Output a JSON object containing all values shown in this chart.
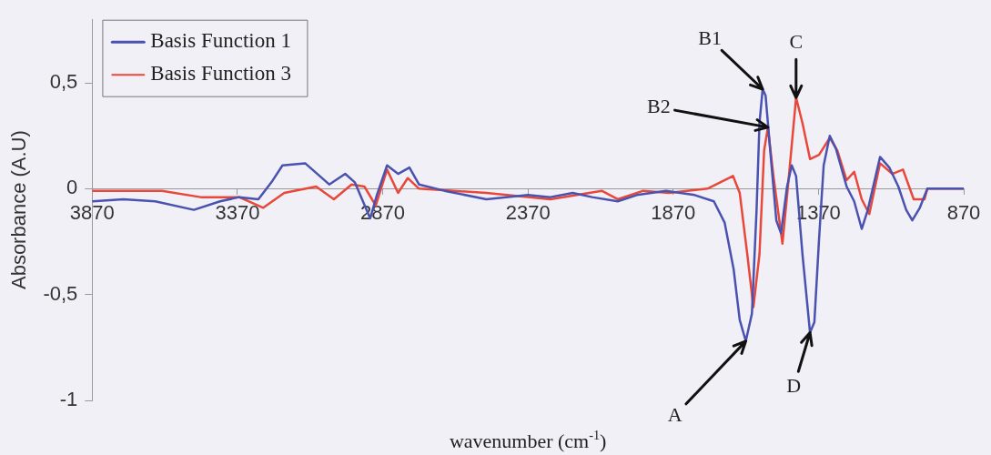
{
  "chart_data": {
    "type": "line",
    "xlabel": "wavenumber (cm$^{-1}$)",
    "ylabel": "Absorbance (A.U)",
    "xlim": [
      3870,
      870
    ],
    "xticks": [
      3870,
      3370,
      2870,
      2370,
      1870,
      1370,
      870
    ],
    "ylim": [
      -1,
      0.8
    ],
    "yticks": [
      {
        "value": -1,
        "label": "-1"
      },
      {
        "value": -0.5,
        "label": "-0,5"
      },
      0,
      {
        "value": 0.5,
        "label": "0,5"
      }
    ],
    "grid": false,
    "legend": "top left",
    "marker": "none",
    "line_style": "solid",
    "series": [
      {
        "name": "Basis Function 1",
        "color": "#4a52b0",
        "x": [
          3868,
          3763,
          3653,
          3520,
          3430,
          3364,
          3298,
          3253,
          3215,
          3137,
          3054,
          2999,
          2966,
          2913,
          2890,
          2855,
          2817,
          2778,
          2745,
          2657,
          2513,
          2370,
          2293,
          2216,
          2149,
          2061,
          1995,
          1895,
          1796,
          1730,
          1693,
          1662,
          1641,
          1620,
          1599,
          1583,
          1573,
          1562,
          1552,
          1536,
          1515,
          1499,
          1478,
          1462,
          1447,
          1425,
          1399,
          1384,
          1368,
          1352,
          1331,
          1310,
          1273,
          1247,
          1221,
          1200,
          1158,
          1126,
          1095,
          1068,
          1047,
          1021,
          995,
          870
        ],
        "values": [
          -0.06,
          -0.05,
          -0.06,
          -0.1,
          -0.06,
          -0.04,
          -0.05,
          0.03,
          0.11,
          0.12,
          0.02,
          0.07,
          0.03,
          -0.14,
          -0.03,
          0.11,
          0.07,
          0.1,
          0.02,
          -0.01,
          -0.05,
          -0.03,
          -0.04,
          -0.02,
          -0.04,
          -0.06,
          -0.03,
          -0.01,
          -0.03,
          -0.06,
          -0.16,
          -0.38,
          -0.62,
          -0.72,
          -0.59,
          -0.1,
          0.31,
          0.47,
          0.44,
          0.18,
          -0.15,
          -0.21,
          0.01,
          0.11,
          0.06,
          -0.31,
          -0.68,
          -0.63,
          -0.24,
          0.11,
          0.25,
          0.19,
          0.01,
          -0.06,
          -0.19,
          -0.1,
          0.15,
          0.1,
          0.01,
          -0.1,
          -0.15,
          -0.09,
          0,
          0
        ]
      },
      {
        "name": "Basis Function 3",
        "color": "#e8483a",
        "x": [
          3868,
          3630,
          3497,
          3364,
          3281,
          3209,
          3099,
          3038,
          2977,
          2933,
          2894,
          2855,
          2817,
          2784,
          2745,
          2513,
          2293,
          2116,
          2061,
          1973,
          1885,
          1752,
          1664,
          1641,
          1615,
          1594,
          1573,
          1557,
          1544,
          1525,
          1494,
          1473,
          1447,
          1425,
          1399,
          1368,
          1331,
          1305,
          1273,
          1247,
          1221,
          1195,
          1158,
          1116,
          1079,
          1042,
          1005,
          995,
          870
        ],
        "values": [
          -0.01,
          -0.01,
          -0.04,
          -0.04,
          -0.09,
          -0.02,
          0.01,
          -0.05,
          0.02,
          0.01,
          -0.08,
          0.09,
          -0.02,
          0.05,
          0,
          -0.02,
          -0.05,
          -0.01,
          -0.05,
          -0.01,
          -0.02,
          0,
          0.06,
          -0.02,
          -0.31,
          -0.56,
          -0.31,
          0.18,
          0.29,
          0.06,
          -0.26,
          0.04,
          0.43,
          0.31,
          0.14,
          0.16,
          0.24,
          0.18,
          0.04,
          0.08,
          -0.05,
          -0.12,
          0.12,
          0.07,
          0.09,
          -0.05,
          -0.05,
          0,
          0
        ]
      }
    ],
    "annotations": [
      {
        "text": "A",
        "x": 1620,
        "y": -0.72
      },
      {
        "text": "B1",
        "x": 1562,
        "y": 0.47
      },
      {
        "text": "B2",
        "x": 1544,
        "y": 0.29
      },
      {
        "text": "C",
        "x": 1447,
        "y": 0.43
      },
      {
        "text": "D",
        "x": 1399,
        "y": -0.68
      }
    ]
  }
}
